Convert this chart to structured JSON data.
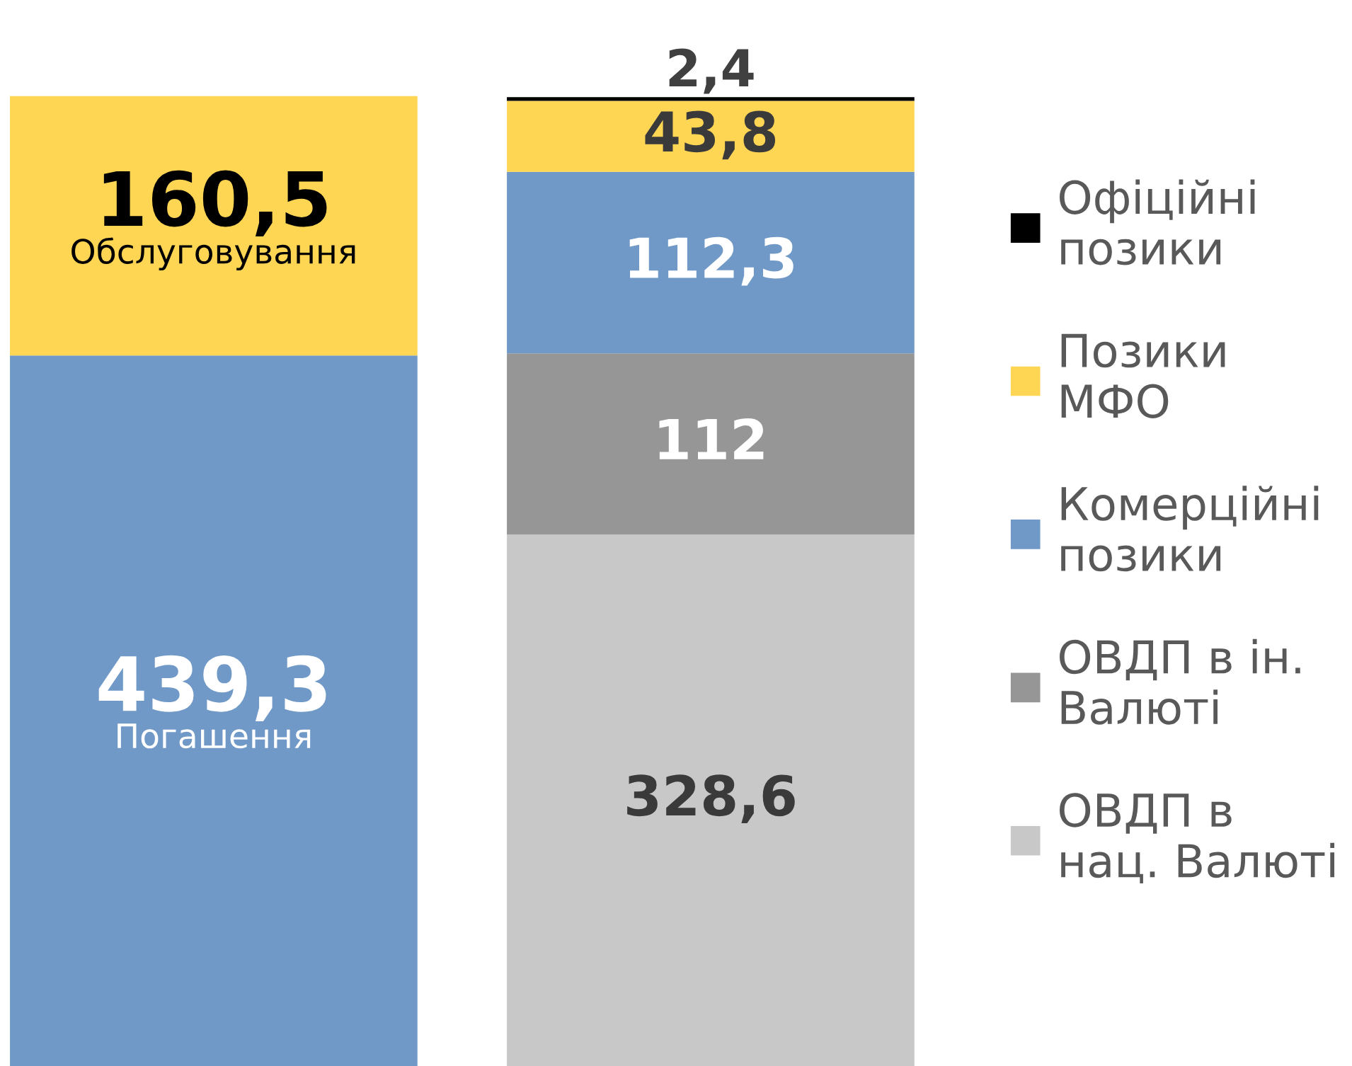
{
  "chart_data": {
    "type": "bar",
    "stacked": true,
    "categories": [
      null,
      null
    ],
    "legend": "right",
    "data_labels": true,
    "series": [
      {
        "name": "ОВДП в нац. Валюті",
        "color": "#c8c8c8",
        "values": [
          null,
          328.6
        ],
        "value_labels": [
          null,
          "328,6"
        ]
      },
      {
        "name": "ОВДП в ін. Валюті",
        "color": "#969696",
        "values": [
          null,
          112
        ],
        "value_labels": [
          null,
          "112"
        ]
      },
      {
        "name": "Комерційні позики",
        "color": "#7099c7",
        "values": [
          439.3,
          112.3
        ],
        "value_labels": [
          "439,3",
          "112,3"
        ]
      },
      {
        "name": "Позики МФО",
        "color": "#ffd654",
        "values": [
          160.5,
          43.8
        ],
        "value_labels": [
          "160,5",
          "43,8"
        ]
      },
      {
        "name": "Офіційні позики",
        "color": "#000000",
        "values": [
          null,
          2.4
        ],
        "value_labels": [
          null,
          "2,4"
        ]
      }
    ],
    "annotations": [
      "Погашення",
      "Обслуговування"
    ]
  }
}
